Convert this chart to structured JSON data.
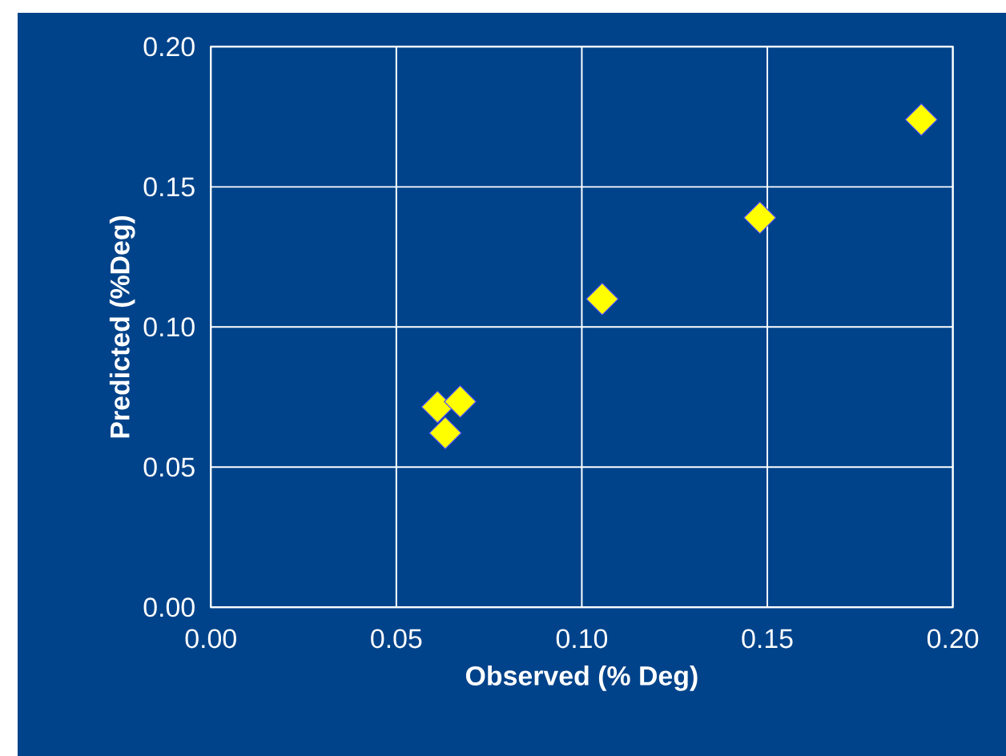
{
  "chart_data": {
    "type": "scatter",
    "xlabel": "Observed (% Deg)",
    "ylabel": "Predicted (%Deg)",
    "x": [
      0.0611,
      0.0632,
      0.0672,
      0.1055,
      0.148,
      0.1915
    ],
    "values": [
      0.0715,
      0.0622,
      0.0734,
      0.11,
      0.139,
      0.174
    ],
    "color": "#ffff00",
    "marker": "diamond",
    "grid": true,
    "xlim": [
      0,
      0.2
    ],
    "ylim": [
      0,
      0.2
    ],
    "xticks": [
      {
        "value": 0,
        "label": "0.00"
      },
      {
        "value": 0.05,
        "label": "0.05"
      },
      {
        "value": 0.1,
        "label": "0.10"
      },
      {
        "value": 0.15,
        "label": "0.15"
      },
      {
        "value": 0.2,
        "label": "0.20"
      }
    ],
    "yticks": [
      {
        "value": 0,
        "label": "0.00"
      },
      {
        "value": 0.05,
        "label": "0.05"
      },
      {
        "value": 0.1,
        "label": "0.10"
      },
      {
        "value": 0.15,
        "label": "0.15"
      },
      {
        "value": 0.2,
        "label": "0.20"
      }
    ]
  }
}
